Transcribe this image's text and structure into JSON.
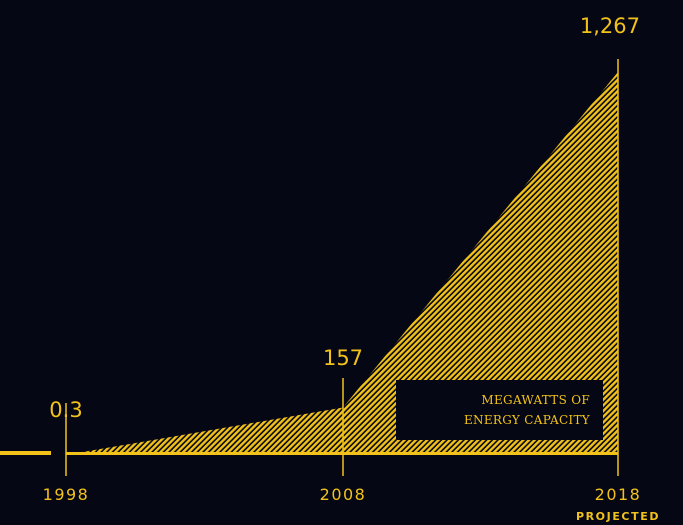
{
  "chart_data": {
    "type": "area",
    "x": [
      "1998",
      "2008",
      "2018"
    ],
    "values": [
      0.3,
      157,
      1267
    ],
    "value_labels": [
      "0.3",
      "157",
      "1,267"
    ],
    "x_notes": [
      "",
      "",
      "PROJECTED"
    ],
    "legend": [
      "MEGAWATTS OF",
      "ENERGY CAPACITY"
    ],
    "legend_placement": "bottom-right",
    "ylim": [
      0,
      1267
    ],
    "grid": false,
    "fill_style": "hatched",
    "colors": {
      "background": "#050714",
      "accent": "#f2c21b"
    }
  }
}
